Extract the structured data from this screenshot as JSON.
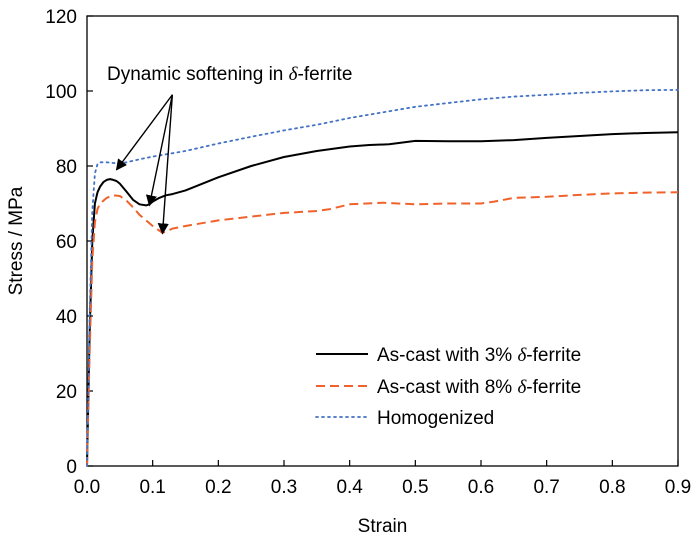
{
  "chart_data": {
    "type": "line",
    "xlabel": "Strain",
    "ylabel": "Stress / MPa",
    "xlim": [
      0.0,
      0.9
    ],
    "ylim": [
      0,
      120
    ],
    "xticks": [
      "0.0",
      "0.1",
      "0.2",
      "0.3",
      "0.4",
      "0.5",
      "0.6",
      "0.7",
      "0.8",
      "0.9"
    ],
    "yticks": [
      "0",
      "20",
      "40",
      "60",
      "80",
      "100",
      "120"
    ],
    "grid": false,
    "legend_position": "lower-right",
    "annotation": {
      "text_prefix": "Dynamic softening in ",
      "text_symbol": "δ",
      "text_suffix": "-ferrite",
      "arrow_origin": {
        "x": 0.13,
        "y": 99
      },
      "arrow_targets": [
        {
          "x": 0.045,
          "y": 79
        },
        {
          "x": 0.095,
          "y": 69.5
        },
        {
          "x": 0.115,
          "y": 62
        }
      ]
    },
    "series": [
      {
        "name_prefix": "As-cast with 3% ",
        "name_symbol": "δ",
        "name_suffix": "-ferrite",
        "color": "#000000",
        "dash": "",
        "x": [
          0.0,
          0.004,
          0.008,
          0.012,
          0.016,
          0.02,
          0.025,
          0.03,
          0.035,
          0.04,
          0.045,
          0.05,
          0.06,
          0.07,
          0.08,
          0.09,
          0.095,
          0.1,
          0.11,
          0.12,
          0.13,
          0.15,
          0.2,
          0.25,
          0.3,
          0.35,
          0.4,
          0.43,
          0.46,
          0.5,
          0.55,
          0.6,
          0.65,
          0.7,
          0.75,
          0.8,
          0.85,
          0.9
        ],
        "y": [
          0,
          35,
          60,
          70,
          73,
          74.5,
          75.7,
          76.3,
          76.5,
          76.3,
          76.0,
          75.3,
          73.2,
          71.0,
          69.8,
          69.5,
          69.8,
          70.5,
          71.5,
          72.2,
          72.5,
          73.5,
          77.0,
          80.0,
          82.4,
          84.0,
          85.2,
          85.6,
          85.8,
          86.7,
          86.6,
          86.6,
          86.9,
          87.5,
          88.0,
          88.5,
          88.8,
          89.0
        ]
      },
      {
        "name_prefix": "As-cast with 8% ",
        "name_symbol": "δ",
        "name_suffix": "-ferrite",
        "color": "#f0622b",
        "dash": "9,5",
        "x": [
          0.0,
          0.004,
          0.008,
          0.012,
          0.016,
          0.02,
          0.03,
          0.04,
          0.05,
          0.06,
          0.07,
          0.08,
          0.09,
          0.1,
          0.11,
          0.115,
          0.12,
          0.13,
          0.15,
          0.2,
          0.25,
          0.3,
          0.35,
          0.37,
          0.4,
          0.45,
          0.5,
          0.55,
          0.6,
          0.62,
          0.65,
          0.7,
          0.75,
          0.8,
          0.85,
          0.9
        ],
        "y": [
          0,
          30,
          55,
          65,
          68.5,
          70.0,
          71.5,
          72.2,
          72.0,
          70.8,
          69.0,
          67.0,
          65.5,
          64.0,
          62.8,
          62.2,
          62.5,
          63.3,
          64.0,
          65.5,
          66.5,
          67.5,
          68.0,
          68.5,
          69.8,
          70.2,
          69.8,
          70.0,
          70.0,
          70.5,
          71.5,
          71.8,
          72.3,
          72.7,
          72.9,
          73.0
        ]
      },
      {
        "name": "Homogenized",
        "color": "#4472c4",
        "dash": "2,4",
        "x": [
          0.0,
          0.004,
          0.008,
          0.012,
          0.016,
          0.02,
          0.03,
          0.04,
          0.05,
          0.06,
          0.08,
          0.1,
          0.15,
          0.2,
          0.25,
          0.3,
          0.35,
          0.4,
          0.45,
          0.5,
          0.55,
          0.6,
          0.65,
          0.7,
          0.75,
          0.8,
          0.85,
          0.9
        ],
        "y": [
          0,
          40,
          68,
          78,
          80.5,
          81.0,
          81.0,
          80.8,
          80.7,
          81.0,
          81.8,
          82.5,
          84.0,
          86.0,
          87.8,
          89.5,
          91.0,
          92.8,
          94.3,
          95.8,
          96.8,
          97.8,
          98.5,
          99.0,
          99.5,
          99.9,
          100.2,
          100.3
        ]
      }
    ]
  }
}
